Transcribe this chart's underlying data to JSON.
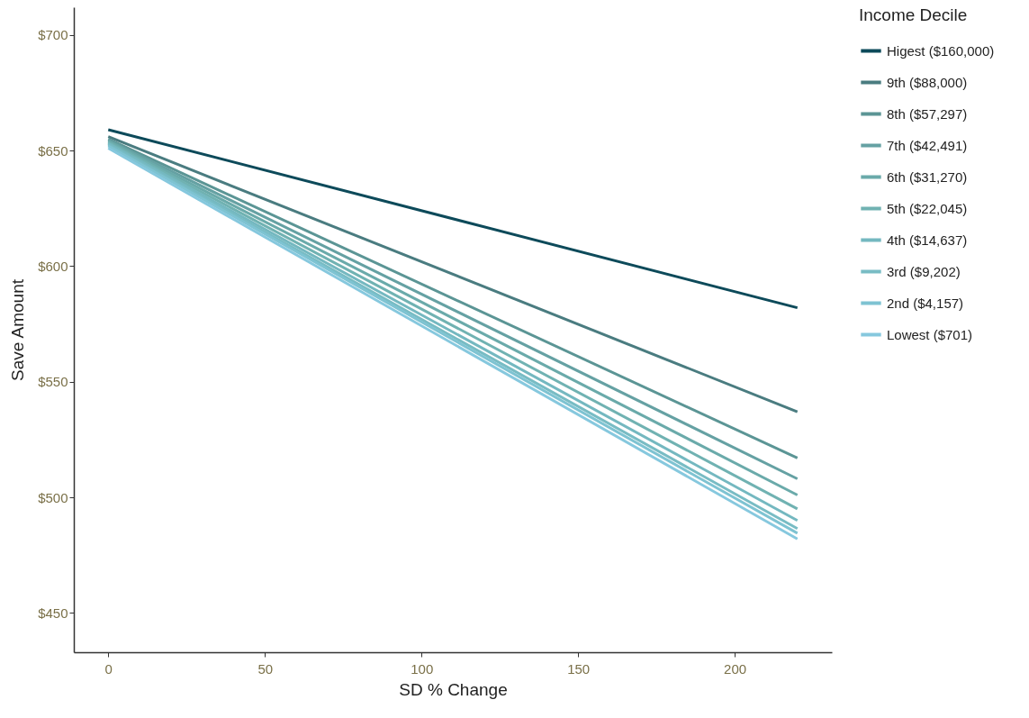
{
  "chart_data": {
    "type": "line",
    "xlabel": "SD % Change",
    "ylabel": "Save Amount",
    "legend_title": "Income Decile",
    "legend": "right",
    "grid": false,
    "marker": "none",
    "line_style": "solid",
    "x": [
      0,
      220
    ],
    "xlim": [
      -11,
      231
    ],
    "xticks": [
      0,
      50,
      100,
      150,
      200
    ],
    "ylim": [
      433,
      712
    ],
    "yticks": [
      {
        "value": 450,
        "label": "$450"
      },
      {
        "value": 500,
        "label": "$500"
      },
      {
        "value": 550,
        "label": "$550"
      },
      {
        "value": 600,
        "label": "$600"
      },
      {
        "value": 650,
        "label": "$650"
      },
      {
        "value": 700,
        "label": "$700"
      }
    ],
    "series": [
      {
        "name": "Higest ($160,000)",
        "color": "#0d4a5a",
        "values": [
          659,
          582
        ]
      },
      {
        "name": "9th ($88,000)",
        "color": "#4a7c80",
        "values": [
          656,
          537
        ]
      },
      {
        "name": "8th ($57,297)",
        "color": "#5b9595",
        "values": [
          655,
          517
        ]
      },
      {
        "name": "7th ($42,491)",
        "color": "#65a1a3",
        "values": [
          654.5,
          508
        ]
      },
      {
        "name": "6th ($31,270)",
        "color": "#6aaaaa",
        "values": [
          654,
          501
        ]
      },
      {
        "name": "5th ($22,045)",
        "color": "#70b2b2",
        "values": [
          653.5,
          495
        ]
      },
      {
        "name": "4th ($14,637)",
        "color": "#74b8c0",
        "values": [
          653,
          490
        ]
      },
      {
        "name": "3rd ($9,202)",
        "color": "#78bcc4",
        "values": [
          652.5,
          486.5
        ]
      },
      {
        "name": "2nd ($4,157)",
        "color": "#7ec3d2",
        "values": [
          652,
          484.5
        ]
      },
      {
        "name": "Lowest ($701)",
        "color": "#86c8de",
        "values": [
          651,
          482
        ]
      }
    ]
  }
}
